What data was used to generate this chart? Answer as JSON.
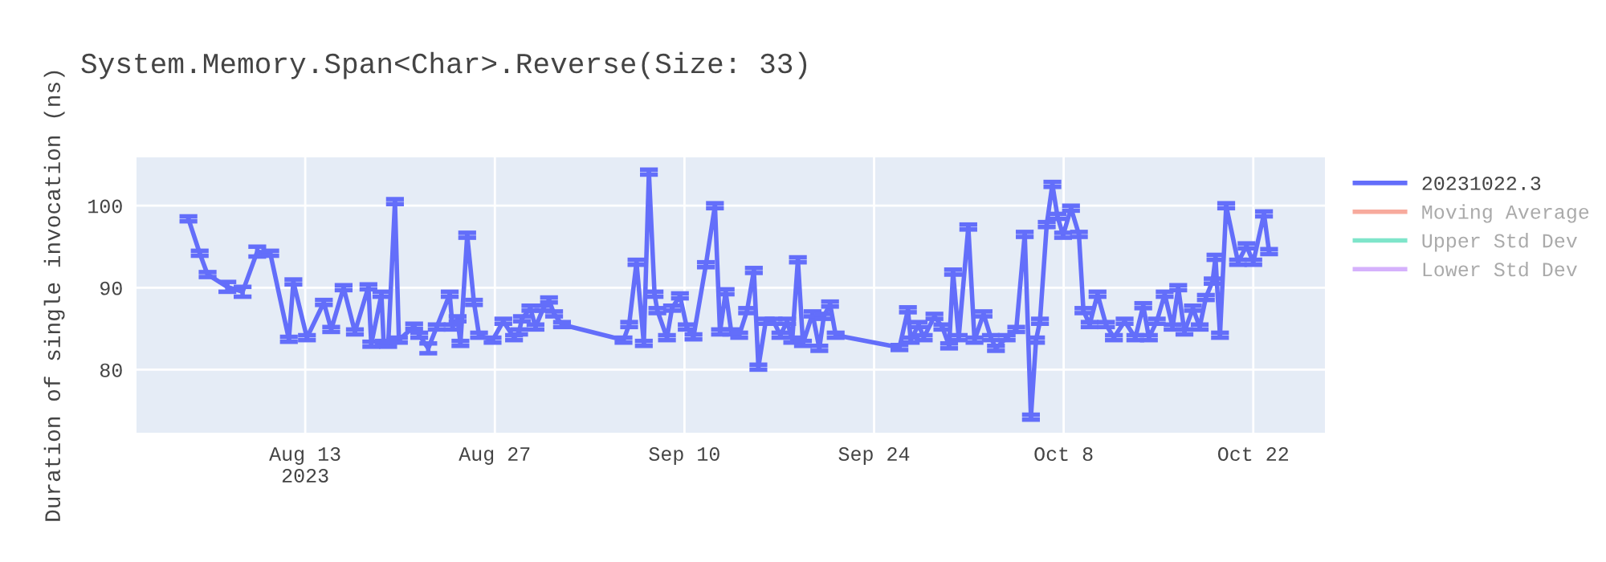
{
  "chart_data": {
    "type": "line",
    "title": "System.Memory.Span<Char>.Reverse(Size: 33)",
    "ylabel": "Duration of single invocation (ns)",
    "xlim": [
      "2023-07-31T13:00",
      "2023-10-27T07:00"
    ],
    "ylim": [
      72.3,
      105.9
    ],
    "xticks": [
      {
        "value": "2023-08-13",
        "label": "Aug 13\n2023"
      },
      {
        "value": "2023-08-27",
        "label": "Aug 27"
      },
      {
        "value": "2023-09-10",
        "label": "Sep 10"
      },
      {
        "value": "2023-09-24",
        "label": "Sep 24"
      },
      {
        "value": "2023-10-08",
        "label": "Oct 8"
      },
      {
        "value": "2023-10-22",
        "label": "Oct 22"
      }
    ],
    "yticks": [
      80,
      90,
      100
    ],
    "grid": true,
    "legend": "top right",
    "series": [
      {
        "name": "20231022.3",
        "color": "#636efa",
        "x": [
          "2023-08-04T09:00",
          "2023-08-05T05:00",
          "2023-08-05T19:00",
          "2023-08-07T06:00",
          "2023-08-08T09:00",
          "2023-08-09T11:00",
          "2023-08-10T10:00",
          "2023-08-11T19:00",
          "2023-08-12T03:00",
          "2023-08-13T03:00",
          "2023-08-14T09:00",
          "2023-08-14T22:00",
          "2023-08-15T20:00",
          "2023-08-16T16:00",
          "2023-08-17T16:00",
          "2023-08-17T21:00",
          "2023-08-18T15:00",
          "2023-08-18T19:00",
          "2023-08-19T03:00",
          "2023-08-19T15:00",
          "2023-08-19T22:00",
          "2023-08-21T01:00",
          "2023-08-21T10:00",
          "2023-08-22T02:00",
          "2023-08-22T17:00",
          "2023-08-23T16:00",
          "2023-08-23T21:00",
          "2023-08-24T06:00",
          "2023-08-24T11:00",
          "2023-08-24T23:00",
          "2023-08-25T11:00",
          "2023-08-25T20:00",
          "2023-08-26T20:00",
          "2023-08-27T15:00",
          "2023-08-28T10:00",
          "2023-08-28T19:00",
          "2023-08-29T00:00",
          "2023-08-29T15:00",
          "2023-08-30T00:00",
          "2023-08-30T14:00",
          "2023-08-31T00:00",
          "2023-08-31T09:00",
          "2023-08-31T23:00",
          "2023-09-05T12:00",
          "2023-09-05T22:00",
          "2023-09-06T11:00",
          "2023-09-07T00:00",
          "2023-09-07T09:00",
          "2023-09-07T19:00",
          "2023-09-08T00:00",
          "2023-09-08T17:00",
          "2023-09-09T02:00",
          "2023-09-09T16:00",
          "2023-09-10T04:00",
          "2023-09-10T16:00",
          "2023-09-11T14:00",
          "2023-09-12T06:00",
          "2023-09-12T15:00",
          "2023-09-13T01:00",
          "2023-09-13T11:00",
          "2023-09-14T01:00",
          "2023-09-14T15:00",
          "2023-09-15T03:00",
          "2023-09-15T11:00",
          "2023-09-16T00:00",
          "2023-09-16T14:00",
          "2023-09-17T02:00",
          "2023-09-17T14:00",
          "2023-09-17T23:00",
          "2023-09-18T09:00",
          "2023-09-18T18:00",
          "2023-09-19T11:00",
          "2023-09-19T23:00",
          "2023-09-20T07:00",
          "2023-09-20T18:00",
          "2023-09-21T04:00",
          "2023-09-25T21:00",
          "2023-09-26T12:00",
          "2023-09-26T17:00",
          "2023-09-27T07:00",
          "2023-09-27T16:00",
          "2023-09-28T11:00",
          "2023-09-29T01:00",
          "2023-09-29T13:00",
          "2023-09-29T20:00",
          "2023-09-30T06:00",
          "2023-09-30T23:00",
          "2023-10-01T10:00",
          "2023-10-02T02:00",
          "2023-10-02T15:00",
          "2023-10-03T00:00",
          "2023-10-03T19:00",
          "2023-10-04T12:00",
          "2023-10-05T03:00",
          "2023-10-05T14:00",
          "2023-10-05T23:00",
          "2023-10-06T06:00",
          "2023-10-06T18:00",
          "2023-10-07T04:00",
          "2023-10-07T13:00",
          "2023-10-07T23:00",
          "2023-10-08T13:00",
          "2023-10-09T03:00",
          "2023-10-09T11:00",
          "2023-10-09T22:00",
          "2023-10-10T12:00",
          "2023-10-11T03:00",
          "2023-10-11T17:00",
          "2023-10-12T12:00",
          "2023-10-13T07:00",
          "2023-10-13T21:00",
          "2023-10-14T07:00",
          "2023-10-14T21:00",
          "2023-10-15T11:00",
          "2023-10-16T01:00",
          "2023-10-16T11:00",
          "2023-10-16T22:00",
          "2023-10-17T13:00",
          "2023-10-18T01:00",
          "2023-10-18T12:00",
          "2023-10-19T00:00",
          "2023-10-19T05:00",
          "2023-10-19T13:00",
          "2023-10-20T00:00",
          "2023-10-20T21:00",
          "2023-10-21T12:00",
          "2023-10-22T00:00",
          "2023-10-22T19:00",
          "2023-10-23T04:00"
        ],
        "values": [
          98.4,
          94.2,
          91.6,
          90.1,
          89.5,
          94.4,
          94.2,
          83.7,
          90.7,
          83.9,
          88.2,
          84.9,
          90,
          84.6,
          90.1,
          83.1,
          89.2,
          83.2,
          83.1,
          100.5,
          83.6,
          85.3,
          84.2,
          82.6,
          85.2,
          89.2,
          85.2,
          86.2,
          83.2,
          96.4,
          88.2,
          84.2,
          83.6,
          85.9,
          83.9,
          84.6,
          86.2,
          87.5,
          85.2,
          87.5,
          88.5,
          86.8,
          85.5,
          83.6,
          85.5,
          93.1,
          83.2,
          104.1,
          89.2,
          87.2,
          83.9,
          87.5,
          89.0,
          85.2,
          84.0,
          92.8,
          100,
          84.6,
          89.5,
          84.6,
          84.2,
          87.2,
          92.1,
          80.3,
          85.9,
          85.9,
          84.2,
          85.9,
          83.6,
          93.4,
          83.2,
          86.8,
          82.6,
          86.5,
          88.0,
          84.2,
          82.7,
          87.3,
          83.6,
          85.5,
          83.9,
          86.5,
          85.2,
          82.9,
          91.9,
          83.9,
          97.4,
          83.6,
          86.8,
          83.9,
          82.6,
          83.9,
          84.9,
          96.5,
          74.2,
          83.6,
          85.9,
          97.7,
          102.6,
          98.7,
          96.4,
          99.7,
          96.5,
          87.2,
          85.5,
          89.2,
          85.5,
          83.9,
          85.9,
          83.9,
          87.8,
          83.9,
          85.9,
          89.2,
          85.2,
          90,
          84.6,
          87.5,
          85.2,
          88.8,
          90.8,
          93.7,
          84.2,
          100,
          93.1,
          95.1,
          93.1,
          99,
          94.4
        ],
        "errors": [
          0.3,
          0.3,
          0.3,
          0.6,
          0.6,
          0.6,
          0.3,
          0.3,
          0.3,
          0.3,
          0.3,
          0.3,
          0.3,
          0.3,
          0.3,
          0.3,
          0.3,
          0.3,
          0.3,
          0.3,
          0.3,
          0.3,
          0.3,
          0.6,
          0.3,
          0.3,
          0.3,
          0.3,
          0.3,
          0.3,
          0.3,
          0.3,
          0.3,
          0.3,
          0.3,
          0.3,
          0.3,
          0.3,
          0.3,
          0.3,
          0.3,
          0.3,
          0.3,
          0.3,
          0.3,
          0.3,
          0.3,
          0.3,
          0.3,
          0.3,
          0.3,
          0.3,
          0.3,
          0.3,
          0.3,
          0.3,
          0.3,
          0.3,
          0.3,
          0.3,
          0.3,
          0.3,
          0.3,
          0.3,
          0.3,
          0.3,
          0.3,
          0.3,
          0.3,
          0.3,
          0.3,
          0.3,
          0.3,
          0.3,
          0.3,
          0.3,
          0.3,
          0.3,
          0.3,
          0.3,
          0.3,
          0.3,
          0.3,
          0.3,
          0.3,
          0.3,
          0.3,
          0.3,
          0.3,
          0.3,
          0.3,
          0.3,
          0.3,
          0.3,
          0.3,
          0.3,
          0.3,
          0.3,
          0.3,
          0.3,
          0.3,
          0.3,
          0.3,
          0.3,
          0.3,
          0.3,
          0.3,
          0.3,
          0.3,
          0.3,
          0.3,
          0.3,
          0.3,
          0.3,
          0.3,
          0.3,
          0.3,
          0.3,
          0.3,
          0.3,
          0.3,
          0.3,
          0.3,
          0.3,
          0.3,
          0.3,
          0.3,
          0.3,
          0.3
        ]
      },
      {
        "name": "Moving Average",
        "color": "#ef553b"
      },
      {
        "name": "Upper Std Dev",
        "color": "#00cc96"
      },
      {
        "name": "Lower Std Dev",
        "color": "#ab63fa"
      }
    ]
  }
}
